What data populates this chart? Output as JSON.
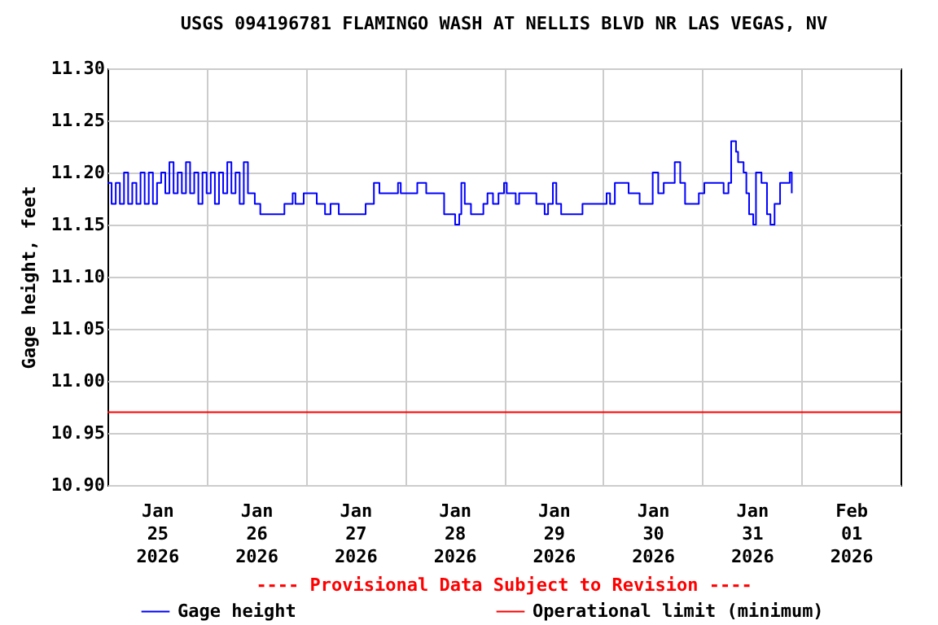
{
  "chart_data": {
    "type": "step",
    "title": "USGS 094196781 FLAMINGO WASH AT NELLIS BLVD NR LAS VEGAS, NV",
    "ylabel": "Gage height, feet",
    "annotations": [
      "---- Provisional Data Subject to Revision ----"
    ],
    "xlim": [
      "2026-01-25T00:00",
      "2026-02-02T00:00"
    ],
    "xticks": [
      {
        "value": "2026-01-25T12:00",
        "label": "Jan\n25\n2026"
      },
      {
        "value": "2026-01-26T00:00",
        "label": null
      },
      {
        "value": "2026-01-26T12:00",
        "label": "Jan\n26\n2026"
      },
      {
        "value": "2026-01-27T00:00",
        "label": null
      },
      {
        "value": "2026-01-27T12:00",
        "label": "Jan\n27\n2026"
      },
      {
        "value": "2026-01-28T00:00",
        "label": null
      },
      {
        "value": "2026-01-28T12:00",
        "label": "Jan\n28\n2026"
      },
      {
        "value": "2026-01-29T00:00",
        "label": null
      },
      {
        "value": "2026-01-29T12:00",
        "label": "Jan\n29\n2026"
      },
      {
        "value": "2026-01-30T00:00",
        "label": null
      },
      {
        "value": "2026-01-30T12:00",
        "label": "Jan\n30\n2026"
      },
      {
        "value": "2026-01-31T00:00",
        "label": null
      },
      {
        "value": "2026-01-31T12:00",
        "label": "Jan\n31\n2026"
      },
      {
        "value": "2026-02-01T00:00",
        "label": null
      },
      {
        "value": "2026-02-01T12:00",
        "label": "Feb\n01\n2026"
      }
    ],
    "ylim": [
      10.9,
      11.3
    ],
    "yticks": [
      {
        "value": 10.9,
        "label": "10.90"
      },
      10.95,
      {
        "value": 11.0,
        "label": "11.00"
      },
      11.05,
      {
        "value": 11.1,
        "label": "11.10"
      },
      11.15,
      {
        "value": 11.2,
        "label": "11.20"
      },
      11.25,
      {
        "value": 11.3,
        "label": "11.30"
      }
    ],
    "grid": true,
    "legend": "bottom",
    "line_style": "solid",
    "ref_lines": [
      {
        "axis": "y",
        "value": 10.97,
        "label": "Operational limit (minimum)",
        "color": "#ff0000"
      }
    ],
    "series": [
      {
        "name": "Gage height",
        "color": "#0000ff",
        "x": [
          "2026-01-25T00:00",
          "2026-01-25T01:00",
          "2026-01-25T02:00",
          "2026-01-25T03:00",
          "2026-01-25T04:00",
          "2026-01-25T05:00",
          "2026-01-25T06:00",
          "2026-01-25T07:00",
          "2026-01-25T08:00",
          "2026-01-25T09:00",
          "2026-01-25T10:00",
          "2026-01-25T11:00",
          "2026-01-25T12:00",
          "2026-01-25T13:00",
          "2026-01-25T14:00",
          "2026-01-25T15:00",
          "2026-01-25T16:00",
          "2026-01-25T17:00",
          "2026-01-25T18:00",
          "2026-01-25T19:00",
          "2026-01-25T20:00",
          "2026-01-25T21:00",
          "2026-01-25T22:00",
          "2026-01-25T23:00",
          "2026-01-26T00:00",
          "2026-01-26T01:00",
          "2026-01-26T02:00",
          "2026-01-26T03:00",
          "2026-01-26T04:00",
          "2026-01-26T05:00",
          "2026-01-26T06:00",
          "2026-01-26T07:00",
          "2026-01-26T08:00",
          "2026-01-26T09:00",
          "2026-01-26T10:00",
          "2026-01-26T11:40",
          "2026-01-26T13:00",
          "2026-01-26T18:50",
          "2026-01-26T20:50",
          "2026-01-26T21:30",
          "2026-01-26T23:30",
          "2026-01-27T02:40",
          "2026-01-27T04:40",
          "2026-01-27T06:00",
          "2026-01-27T08:00",
          "2026-01-27T14:30",
          "2026-01-27T16:30",
          "2026-01-27T17:50",
          "2026-01-27T22:20",
          "2026-01-27T23:00",
          "2026-01-28T03:00",
          "2026-01-28T05:10",
          "2026-01-28T09:30",
          "2026-01-28T12:10",
          "2026-01-28T13:10",
          "2026-01-28T13:40",
          "2026-01-28T14:30",
          "2026-01-28T16:00",
          "2026-01-28T19:00",
          "2026-01-28T20:00",
          "2026-01-28T21:20",
          "2026-01-28T22:40",
          "2026-01-29T00:00",
          "2026-01-29T00:40",
          "2026-01-29T02:50",
          "2026-01-29T03:40",
          "2026-01-29T07:50",
          "2026-01-29T09:50",
          "2026-01-29T10:40",
          "2026-01-29T11:50",
          "2026-01-29T12:40",
          "2026-01-29T13:50",
          "2026-01-29T19:00",
          "2026-01-30T00:50",
          "2026-01-30T01:40",
          "2026-01-30T02:50",
          "2026-01-30T06:10",
          "2026-01-30T08:50",
          "2026-01-30T12:00",
          "2026-01-30T13:20",
          "2026-01-30T14:40",
          "2026-01-30T17:20",
          "2026-01-30T18:40",
          "2026-01-30T19:50",
          "2026-01-30T23:10",
          "2026-01-31T00:30",
          "2026-01-31T05:10",
          "2026-01-31T06:20",
          "2026-01-31T07:00",
          "2026-01-31T08:10",
          "2026-01-31T08:40",
          "2026-01-31T10:00",
          "2026-01-31T10:40",
          "2026-01-31T11:20",
          "2026-01-31T12:20",
          "2026-01-31T13:00",
          "2026-01-31T14:20",
          "2026-01-31T15:40",
          "2026-01-31T16:30",
          "2026-01-31T17:30",
          "2026-01-31T18:50",
          "2026-01-31T21:10",
          "2026-01-31T21:40"
        ],
        "values": [
          11.19,
          11.17,
          11.19,
          11.17,
          11.2,
          11.17,
          11.19,
          11.17,
          11.2,
          11.17,
          11.2,
          11.17,
          11.19,
          11.2,
          11.18,
          11.21,
          11.18,
          11.2,
          11.18,
          11.21,
          11.18,
          11.2,
          11.17,
          11.2,
          11.18,
          11.2,
          11.17,
          11.2,
          11.18,
          11.21,
          11.18,
          11.2,
          11.17,
          11.21,
          11.18,
          11.17,
          11.16,
          11.17,
          11.18,
          11.17,
          11.18,
          11.17,
          11.16,
          11.17,
          11.16,
          11.17,
          11.19,
          11.18,
          11.19,
          11.18,
          11.19,
          11.18,
          11.16,
          11.15,
          11.16,
          11.19,
          11.17,
          11.16,
          11.17,
          11.18,
          11.17,
          11.18,
          11.19,
          11.18,
          11.17,
          11.18,
          11.17,
          11.16,
          11.17,
          11.19,
          11.17,
          11.16,
          11.17,
          11.18,
          11.17,
          11.19,
          11.18,
          11.17,
          11.2,
          11.18,
          11.19,
          11.21,
          11.19,
          11.17,
          11.18,
          11.19,
          11.18,
          11.19,
          11.23,
          11.22,
          11.21,
          11.2,
          11.18,
          11.16,
          11.15,
          11.2,
          11.19,
          11.16,
          11.15,
          11.17,
          11.19,
          11.2,
          11.18
        ]
      }
    ]
  }
}
